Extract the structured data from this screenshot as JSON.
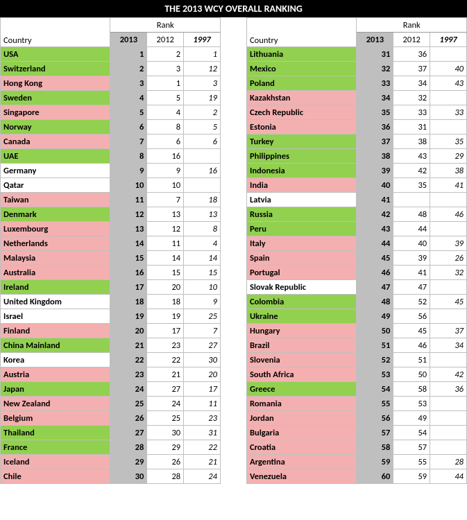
{
  "title": "THE 2013 WCY OVERALL RANKING",
  "headers": {
    "rank": "Rank",
    "country": "Country",
    "y2013": "2013",
    "y2012": "2012",
    "y1997": "1997"
  },
  "colors": {
    "green": "#92d050",
    "pink": "#f4b0b0",
    "white": "#ffffff",
    "grey": "#bfbfbf",
    "black": "#000000"
  },
  "col_widths": {
    "country": 140,
    "year": 50
  },
  "left": [
    {
      "country": "USA",
      "r2013": "1",
      "r2012": "2",
      "r1997": "1",
      "cls": "green"
    },
    {
      "country": "Switzerland",
      "r2013": "2",
      "r2012": "3",
      "r1997": "12",
      "cls": "green"
    },
    {
      "country": "Hong Kong",
      "r2013": "3",
      "r2012": "1",
      "r1997": "3",
      "cls": "pink"
    },
    {
      "country": "Sweden",
      "r2013": "4",
      "r2012": "5",
      "r1997": "19",
      "cls": "green"
    },
    {
      "country": "Singapore",
      "r2013": "5",
      "r2012": "4",
      "r1997": "2",
      "cls": "pink"
    },
    {
      "country": "Norway",
      "r2013": "6",
      "r2012": "8",
      "r1997": "5",
      "cls": "green"
    },
    {
      "country": "Canada",
      "r2013": "7",
      "r2012": "6",
      "r1997": "6",
      "cls": "pink"
    },
    {
      "country": "UAE",
      "r2013": "8",
      "r2012": "16",
      "r1997": "",
      "cls": "green"
    },
    {
      "country": "Germany",
      "r2013": "9",
      "r2012": "9",
      "r1997": "16",
      "cls": "white"
    },
    {
      "country": "Qatar",
      "r2013": "10",
      "r2012": "10",
      "r1997": "",
      "cls": "white"
    },
    {
      "country": "Taiwan",
      "r2013": "11",
      "r2012": "7",
      "r1997": "18",
      "cls": "pink"
    },
    {
      "country": "Denmark",
      "r2013": "12",
      "r2012": "13",
      "r1997": "13",
      "cls": "green"
    },
    {
      "country": "Luxembourg",
      "r2013": "13",
      "r2012": "12",
      "r1997": "8",
      "cls": "pink"
    },
    {
      "country": "Netherlands",
      "r2013": "14",
      "r2012": "11",
      "r1997": "4",
      "cls": "pink"
    },
    {
      "country": "Malaysia",
      "r2013": "15",
      "r2012": "14",
      "r1997": "14",
      "cls": "pink"
    },
    {
      "country": "Australia",
      "r2013": "16",
      "r2012": "15",
      "r1997": "15",
      "cls": "pink"
    },
    {
      "country": "Ireland",
      "r2013": "17",
      "r2012": "20",
      "r1997": "10",
      "cls": "green"
    },
    {
      "country": "United Kingdom",
      "r2013": "18",
      "r2012": "18",
      "r1997": "9",
      "cls": "white"
    },
    {
      "country": "Israel",
      "r2013": "19",
      "r2012": "19",
      "r1997": "25",
      "cls": "white"
    },
    {
      "country": "Finland",
      "r2013": "20",
      "r2012": "17",
      "r1997": "7",
      "cls": "pink"
    },
    {
      "country": "China Mainland",
      "r2013": "21",
      "r2012": "23",
      "r1997": "27",
      "cls": "green"
    },
    {
      "country": "Korea",
      "r2013": "22",
      "r2012": "22",
      "r1997": "30",
      "cls": "white"
    },
    {
      "country": "Austria",
      "r2013": "23",
      "r2012": "21",
      "r1997": "20",
      "cls": "pink"
    },
    {
      "country": "Japan",
      "r2013": "24",
      "r2012": "27",
      "r1997": "17",
      "cls": "green"
    },
    {
      "country": "New Zealand",
      "r2013": "25",
      "r2012": "24",
      "r1997": "11",
      "cls": "pink"
    },
    {
      "country": "Belgium",
      "r2013": "26",
      "r2012": "25",
      "r1997": "23",
      "cls": "pink"
    },
    {
      "country": "Thailand",
      "r2013": "27",
      "r2012": "30",
      "r1997": "31",
      "cls": "green"
    },
    {
      "country": "France",
      "r2013": "28",
      "r2012": "29",
      "r1997": "22",
      "cls": "green"
    },
    {
      "country": "Iceland",
      "r2013": "29",
      "r2012": "26",
      "r1997": "21",
      "cls": "pink"
    },
    {
      "country": "Chile",
      "r2013": "30",
      "r2012": "28",
      "r1997": "24",
      "cls": "pink"
    }
  ],
  "right": [
    {
      "country": "Lithuania",
      "r2013": "31",
      "r2012": "36",
      "r1997": "",
      "cls": "green"
    },
    {
      "country": "Mexico",
      "r2013": "32",
      "r2012": "37",
      "r1997": "40",
      "cls": "green"
    },
    {
      "country": "Poland",
      "r2013": "33",
      "r2012": "34",
      "r1997": "43",
      "cls": "green"
    },
    {
      "country": "Kazakhstan",
      "r2013": "34",
      "r2012": "32",
      "r1997": "",
      "cls": "pink"
    },
    {
      "country": "Czech Republic",
      "r2013": "35",
      "r2012": "33",
      "r1997": "33",
      "cls": "pink"
    },
    {
      "country": "Estonia",
      "r2013": "36",
      "r2012": "31",
      "r1997": "",
      "cls": "pink"
    },
    {
      "country": "Turkey",
      "r2013": "37",
      "r2012": "38",
      "r1997": "35",
      "cls": "green"
    },
    {
      "country": "Philippines",
      "r2013": "38",
      "r2012": "43",
      "r1997": "29",
      "cls": "green"
    },
    {
      "country": "Indonesia",
      "r2013": "39",
      "r2012": "42",
      "r1997": "38",
      "cls": "green"
    },
    {
      "country": "India",
      "r2013": "40",
      "r2012": "35",
      "r1997": "41",
      "cls": "pink"
    },
    {
      "country": "Latvia",
      "r2013": "41",
      "r2012": "",
      "r1997": "",
      "cls": "white"
    },
    {
      "country": "Russia",
      "r2013": "42",
      "r2012": "48",
      "r1997": "46",
      "cls": "green"
    },
    {
      "country": "Peru",
      "r2013": "43",
      "r2012": "44",
      "r1997": "",
      "cls": "green"
    },
    {
      "country": "Italy",
      "r2013": "44",
      "r2012": "40",
      "r1997": "39",
      "cls": "pink"
    },
    {
      "country": "Spain",
      "r2013": "45",
      "r2012": "39",
      "r1997": "26",
      "cls": "pink"
    },
    {
      "country": "Portugal",
      "r2013": "46",
      "r2012": "41",
      "r1997": "32",
      "cls": "pink"
    },
    {
      "country": "Slovak Republic",
      "r2013": "47",
      "r2012": "47",
      "r1997": "",
      "cls": "white"
    },
    {
      "country": "Colombia",
      "r2013": "48",
      "r2012": "52",
      "r1997": "45",
      "cls": "green"
    },
    {
      "country": "Ukraine",
      "r2013": "49",
      "r2012": "56",
      "r1997": "",
      "cls": "green"
    },
    {
      "country": "Hungary",
      "r2013": "50",
      "r2012": "45",
      "r1997": "37",
      "cls": "pink"
    },
    {
      "country": "Brazil",
      "r2013": "51",
      "r2012": "46",
      "r1997": "34",
      "cls": "pink"
    },
    {
      "country": "Slovenia",
      "r2013": "52",
      "r2012": "51",
      "r1997": "",
      "cls": "pink"
    },
    {
      "country": "South Africa",
      "r2013": "53",
      "r2012": "50",
      "r1997": "42",
      "cls": "pink"
    },
    {
      "country": "Greece",
      "r2013": "54",
      "r2012": "58",
      "r1997": "36",
      "cls": "green"
    },
    {
      "country": "Romania",
      "r2013": "55",
      "r2012": "53",
      "r1997": "",
      "cls": "pink"
    },
    {
      "country": "Jordan",
      "r2013": "56",
      "r2012": "49",
      "r1997": "",
      "cls": "pink"
    },
    {
      "country": "Bulgaria",
      "r2013": "57",
      "r2012": "54",
      "r1997": "",
      "cls": "pink"
    },
    {
      "country": "Croatia",
      "r2013": "58",
      "r2012": "57",
      "r1997": "",
      "cls": "pink"
    },
    {
      "country": "Argentina",
      "r2013": "59",
      "r2012": "55",
      "r1997": "28",
      "cls": "pink"
    },
    {
      "country": "Venezuela",
      "r2013": "60",
      "r2012": "59",
      "r1997": "44",
      "cls": "pink"
    }
  ]
}
